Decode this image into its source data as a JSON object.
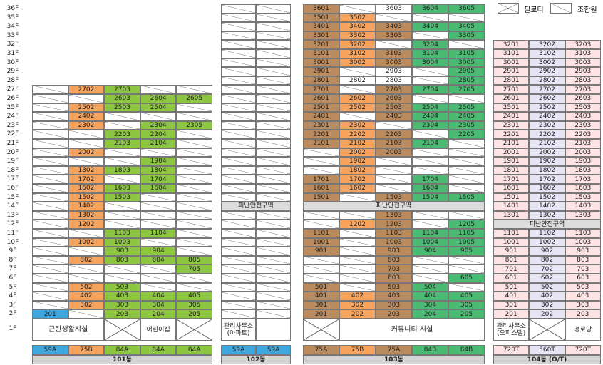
{
  "legend": {
    "pilotis": "필로티",
    "member": "조합원"
  },
  "floors": [
    "36F",
    "35F",
    "34F",
    "33F",
    "32F",
    "31F",
    "30F",
    "29F",
    "28F",
    "27F",
    "26F",
    "25F",
    "24F",
    "23F",
    "22F",
    "21F",
    "20F",
    "19F",
    "18F",
    "17F",
    "16F",
    "15F",
    "14F",
    "13F",
    "12F",
    "11F",
    "10F",
    "9F",
    "8F",
    "7F",
    "6F",
    "5F",
    "4F",
    "3F",
    "2F",
    "1F"
  ],
  "buildings": [
    {
      "name": "101동",
      "types": [
        "59A",
        "75B",
        "84A",
        "84A",
        "84A"
      ],
      "colors": [
        "#3ea7de",
        "#f6a35e",
        "#8dc641",
        "#8dc641",
        "#8dc641"
      ],
      "rows": [
        null,
        null,
        null,
        null,
        null,
        null,
        null,
        null,
        null,
        [
          null,
          "2702",
          "2703",
          null,
          null
        ],
        [
          null,
          null,
          "2603",
          "2604",
          "2605"
        ],
        [
          null,
          "2502",
          "2503",
          "2504",
          null
        ],
        [
          null,
          "2402",
          null,
          null,
          null
        ],
        [
          null,
          "2302",
          null,
          "2304",
          "2305"
        ],
        [
          null,
          null,
          "2203",
          "2204",
          null
        ],
        [
          null,
          null,
          "2103",
          "2104",
          null
        ],
        [
          null,
          "2002",
          null,
          null,
          null
        ],
        [
          null,
          null,
          null,
          "1904",
          null
        ],
        [
          null,
          "1802",
          "1803",
          "1804",
          null
        ],
        [
          null,
          "1702",
          null,
          "1704",
          null
        ],
        [
          null,
          "1602",
          "1603",
          "1604",
          null
        ],
        [
          null,
          "1502",
          "1503",
          null,
          null
        ],
        [
          null,
          "1402",
          null,
          null,
          null
        ],
        [
          null,
          "1302",
          null,
          null,
          null
        ],
        [
          null,
          "1202",
          null,
          null,
          null
        ],
        [
          null,
          null,
          "1103",
          "1104",
          null
        ],
        [
          null,
          "1002",
          "1003",
          null,
          null
        ],
        [
          null,
          null,
          "903",
          "904",
          null
        ],
        [
          null,
          "802",
          "803",
          "804",
          "805"
        ],
        [
          null,
          null,
          null,
          null,
          "705"
        ],
        [
          null,
          null,
          null,
          null,
          null
        ],
        [
          null,
          "502",
          "503",
          null,
          null
        ],
        [
          null,
          "402",
          "403",
          "404",
          "405"
        ],
        [
          null,
          "302",
          "303",
          "304",
          "305"
        ],
        [
          "201",
          null,
          "203",
          "204",
          "205"
        ]
      ],
      "ground": [
        {
          "label": "근린생활시설",
          "cols": 2
        },
        null,
        "어린이집",
        null
      ]
    },
    {
      "name": "102동",
      "types": [
        "59A",
        "59A"
      ],
      "colors": [
        "#3ea7de",
        "#3ea7de"
      ],
      "rows": [
        [
          null,
          null
        ],
        [
          null,
          null
        ],
        [
          null,
          null
        ],
        [
          null,
          null
        ],
        [
          null,
          null
        ],
        [
          null,
          null
        ],
        [
          null,
          null
        ],
        [
          null,
          null
        ],
        [
          null,
          null
        ],
        [
          null,
          null
        ],
        [
          null,
          null
        ],
        [
          null,
          null
        ],
        [
          null,
          null
        ],
        [
          null,
          null
        ],
        [
          null,
          null
        ],
        [
          null,
          null
        ],
        [
          null,
          null
        ],
        [
          null,
          null
        ],
        [
          null,
          null
        ],
        [
          null,
          null
        ],
        [
          null,
          null
        ],
        [
          null,
          null
        ],
        {
          "zone": "피난안전구역"
        },
        [
          null,
          null
        ],
        [
          null,
          null
        ],
        [
          null,
          null
        ],
        [
          null,
          null
        ],
        [
          null,
          null
        ],
        [
          null,
          null
        ],
        [
          null,
          null
        ],
        [
          null,
          null
        ],
        [
          null,
          null
        ],
        [
          null,
          null
        ],
        [
          null,
          null
        ],
        [
          null,
          null
        ]
      ],
      "ground": [
        "관리사무소\n(아파트)",
        {}
      ]
    },
    {
      "name": "103동",
      "types": [
        "75A",
        "75B",
        "75A",
        "84B",
        "84B"
      ],
      "colors": [
        "#b98b5e",
        "#f6a35e",
        "#b98b5e",
        "#4bba72",
        "#4bba72"
      ],
      "rows": [
        [
          "3601",
          null,
          {
            "unit": "3603",
            "color": "#ffffff"
          },
          "3604",
          "3605"
        ],
        [
          "3501",
          "3502",
          null,
          null,
          null
        ],
        [
          "3401",
          "3402",
          "3403",
          "3404",
          "3405"
        ],
        [
          "3301",
          "3302",
          "3303",
          null,
          "3305"
        ],
        [
          "3201",
          "3202",
          null,
          "3204",
          null
        ],
        [
          "3101",
          "3102",
          "3103",
          "3104",
          "3105"
        ],
        [
          "3001",
          "3002",
          "3003",
          "3004",
          "3005"
        ],
        [
          "2901",
          null,
          {
            "unit": "2903",
            "color": "#ffffff"
          },
          null,
          "2905"
        ],
        [
          "2801",
          {
            "unit": "2802",
            "color": "#ffffff"
          },
          {
            "unit": "2803",
            "color": "#ffffff"
          },
          null,
          "2805"
        ],
        [
          "2701",
          null,
          "2703",
          "2704",
          "2705"
        ],
        [
          "2601",
          "2602",
          "2603",
          null,
          null
        ],
        [
          "2501",
          "2502",
          "2503",
          "2504",
          "2505"
        ],
        [
          "2401",
          null,
          "2403",
          "2404",
          "2405"
        ],
        [
          "2301",
          "2302",
          null,
          "2304",
          "2305"
        ],
        [
          "2201",
          "2202",
          "2203",
          null,
          "2205"
        ],
        [
          "2101",
          "2102",
          "2103",
          "2104",
          null
        ],
        [
          null,
          "2002",
          "2003",
          null,
          null
        ],
        [
          null,
          "1902",
          null,
          null,
          null
        ],
        [
          null,
          "1802",
          null,
          null,
          null
        ],
        [
          "1701",
          "1702",
          null,
          "1704",
          null
        ],
        [
          "1601",
          "1602",
          null,
          "1604",
          null
        ],
        [
          "1501",
          null,
          "1503",
          "1504",
          "1505"
        ],
        {
          "zone": "피난안전구역"
        },
        [
          null,
          null,
          "1303",
          null,
          null
        ],
        [
          null,
          "1202",
          "1203",
          null,
          "1205"
        ],
        [
          "1101",
          null,
          "1103",
          "1104",
          "1105"
        ],
        [
          "1001",
          null,
          "1003",
          "1004",
          "1005"
        ],
        [
          "901",
          null,
          "903",
          "904",
          "905"
        ],
        [
          null,
          null,
          "803",
          null,
          null
        ],
        [
          null,
          null,
          "703",
          null,
          null
        ],
        [
          null,
          null,
          "603",
          null,
          "605"
        ],
        [
          "501",
          null,
          "503",
          "504",
          null
        ],
        [
          "401",
          "402",
          "403",
          "404",
          "405"
        ],
        [
          "301",
          "302",
          "303",
          "304",
          "305"
        ],
        [
          "201",
          "202",
          "203",
          "204",
          "205"
        ]
      ],
      "ground": [
        null,
        {
          "label": "커뮤니티 시설",
          "cols": 4
        }
      ]
    },
    {
      "name": "104동 (O/T)",
      "types": [
        "720T",
        "560T",
        "720T"
      ],
      "colors": [
        "#fde3e3",
        "#e7e5f5",
        "#fde3e3"
      ],
      "rows": [
        null,
        null,
        null,
        null,
        [
          "3201",
          "3202",
          "3203"
        ],
        [
          "3101",
          "3102",
          "3103"
        ],
        [
          "3001",
          "3002",
          "3003"
        ],
        [
          "2901",
          "2902",
          "2903"
        ],
        [
          "2801",
          "2802",
          "2803"
        ],
        [
          "2701",
          "2702",
          "2703"
        ],
        [
          "2601",
          "2602",
          "2603"
        ],
        [
          "2501",
          "2502",
          "2503"
        ],
        [
          "2401",
          "2402",
          "2403"
        ],
        [
          "2301",
          "2302",
          "2303"
        ],
        [
          "2201",
          "2202",
          "2203"
        ],
        [
          "2101",
          "2102",
          "2103"
        ],
        [
          "2001",
          "2002",
          "2003"
        ],
        [
          "1901",
          "1902",
          "1903"
        ],
        [
          "1801",
          "1802",
          "1803"
        ],
        [
          "1701",
          "1702",
          "1703"
        ],
        [
          "1601",
          "1602",
          "1603"
        ],
        [
          "1501",
          "1502",
          "1503"
        ],
        [
          "1401",
          "1402",
          "1403"
        ],
        [
          "1301",
          "1302",
          "1303"
        ],
        {
          "zone": "피난안전구역"
        },
        [
          "1101",
          "1102",
          "1103"
        ],
        [
          "1001",
          "1002",
          "1003"
        ],
        [
          "901",
          "902",
          "903"
        ],
        [
          "801",
          "802",
          "803"
        ],
        [
          "701",
          "702",
          "703"
        ],
        [
          "601",
          "602",
          "603"
        ],
        [
          "501",
          "502",
          "503"
        ],
        [
          "401",
          "402",
          "403"
        ],
        [
          "301",
          "302",
          "303"
        ],
        [
          "201",
          "202",
          "203"
        ]
      ],
      "ground": [
        "관리사무소\n(오피스텔)",
        null,
        "경로당"
      ]
    }
  ]
}
